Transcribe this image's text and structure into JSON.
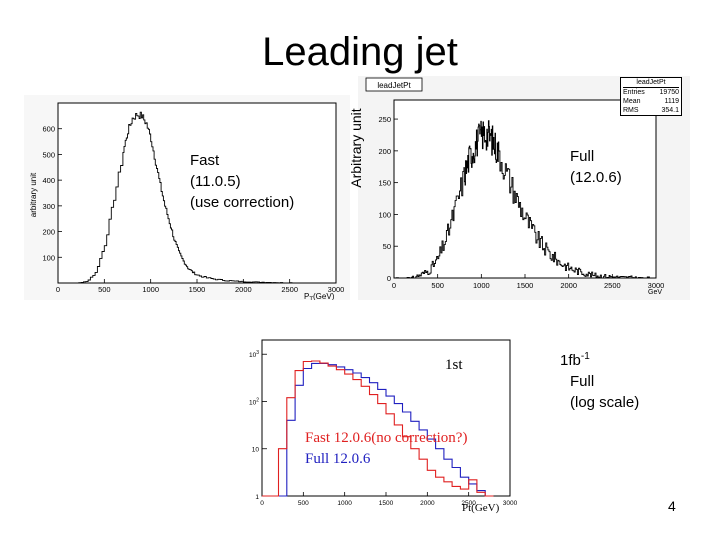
{
  "slide": {
    "title": "Leading jet",
    "page_number": "4"
  },
  "panel_fast": {
    "label_lines": [
      "Fast",
      "(11.0.5)",
      "(use correction)"
    ],
    "ylabel": "arbitrary unit"
  },
  "panel_full": {
    "hist_name": "leadJetPt",
    "stats_title": "leadJetPt",
    "stats": [
      {
        "key": "Entries",
        "value": "19750"
      },
      {
        "key": "Mean",
        "value": "1119"
      },
      {
        "key": "RMS",
        "value": "354.1"
      }
    ],
    "ylabel": "Arbitrary unit",
    "label_lines": [
      "Full",
      "(12.0.6)"
    ]
  },
  "panel_log": {
    "lumi": "1fb",
    "lumi_sup": "-1",
    "label_lines": [
      "Full",
      "(log scale)"
    ],
    "first_label": "1st",
    "legend_fast": "Fast 12.0.6(no correction?)",
    "legend_full": "Full  12.0.6",
    "xlabel": "Pt(GeV)"
  },
  "colors": {
    "fast_series": "#e02020",
    "full_series": "#2020c0"
  },
  "chart_data": [
    {
      "type": "line",
      "title": "",
      "xlabel": "P_T(GeV)",
      "ylabel": "arbitrary unit",
      "xlim": [
        0,
        3000
      ],
      "ylim": [
        0,
        700
      ],
      "xticks": [
        0,
        500,
        1000,
        1500,
        2000,
        2500,
        3000
      ],
      "yticks": [
        100,
        200,
        300,
        400,
        500,
        600
      ],
      "series": [
        {
          "name": "Fast (11.0.5)",
          "x": [
            0,
            100,
            200,
            300,
            400,
            500,
            600,
            700,
            750,
            800,
            850,
            900,
            950,
            1000,
            1050,
            1100,
            1150,
            1200,
            1250,
            1300,
            1350,
            1400,
            1450,
            1500,
            1600,
            1700,
            1800,
            1900,
            2000,
            2100,
            2200,
            2300,
            2400,
            2500,
            2600,
            2700,
            2800,
            2900,
            3000
          ],
          "values": [
            0,
            0,
            0,
            5,
            40,
            150,
            330,
            510,
            590,
            640,
            655,
            650,
            620,
            560,
            470,
            380,
            300,
            235,
            170,
            120,
            85,
            58,
            42,
            30,
            20,
            14,
            10,
            7,
            5,
            4,
            3,
            2,
            1,
            1,
            0,
            0,
            0,
            0,
            0
          ]
        }
      ]
    },
    {
      "type": "line",
      "title": "leadJetPt",
      "xlabel": "GeV",
      "ylabel": "Arbitrary unit",
      "xlim": [
        0,
        3000
      ],
      "ylim": [
        0,
        280
      ],
      "xticks": [
        0,
        500,
        1000,
        1500,
        2000,
        2500,
        3000
      ],
      "yticks": [
        0,
        50,
        100,
        150,
        200,
        250
      ],
      "series": [
        {
          "name": "Full (12.0.6)",
          "x": [
            0,
            200,
            300,
            400,
            500,
            600,
            700,
            800,
            850,
            900,
            950,
            1000,
            1050,
            1100,
            1150,
            1200,
            1300,
            1400,
            1500,
            1600,
            1700,
            1800,
            1900,
            2000,
            2100,
            2200,
            2300,
            2400,
            2500,
            2600,
            2700,
            2800,
            3000
          ],
          "values": [
            0,
            0,
            5,
            12,
            30,
            65,
            110,
            160,
            185,
            200,
            215,
            225,
            228,
            222,
            210,
            195,
            160,
            125,
            95,
            70,
            50,
            35,
            24,
            16,
            11,
            7,
            4,
            3,
            2,
            1,
            1,
            0,
            0
          ]
        }
      ]
    },
    {
      "type": "line",
      "title": "",
      "xlabel": "Pt(GeV)",
      "ylabel": "",
      "yscale": "log",
      "xlim": [
        0,
        3000
      ],
      "ylim": [
        1,
        2000
      ],
      "xticks": [
        0,
        500,
        1000,
        1500,
        2000,
        2500,
        3000
      ],
      "ytick_labels": [
        "1",
        "10",
        "10^2",
        "10^3"
      ],
      "series": [
        {
          "name": "Fast 12.0.6(no correction?)",
          "x": [
            0,
            100,
            200,
            300,
            400,
            500,
            600,
            700,
            800,
            900,
            1000,
            1100,
            1200,
            1300,
            1400,
            1500,
            1600,
            1700,
            1800,
            1900,
            2000,
            2100,
            2200,
            2300,
            2400,
            2500,
            2600,
            2700,
            2800
          ],
          "values": [
            1,
            1,
            10,
            120,
            450,
            700,
            720,
            650,
            560,
            470,
            380,
            290,
            210,
            140,
            90,
            55,
            32,
            18,
            10,
            6,
            3.5,
            2.5,
            2,
            1.6,
            1.4,
            2.2,
            1.2,
            1,
            1
          ]
        },
        {
          "name": "Full  12.0.6",
          "x": [
            0,
            100,
            200,
            300,
            400,
            500,
            600,
            700,
            800,
            900,
            1000,
            1100,
            1200,
            1300,
            1400,
            1500,
            1600,
            1700,
            1800,
            1900,
            2000,
            2100,
            2200,
            2300,
            2400,
            2500,
            2600,
            2700,
            2800
          ],
          "values": [
            1,
            1,
            1,
            40,
            220,
            500,
            640,
            640,
            600,
            540,
            470,
            400,
            320,
            250,
            180,
            130,
            90,
            60,
            38,
            25,
            16,
            10,
            6,
            4,
            2.5,
            1.8,
            1.3,
            1,
            1
          ]
        }
      ]
    }
  ]
}
